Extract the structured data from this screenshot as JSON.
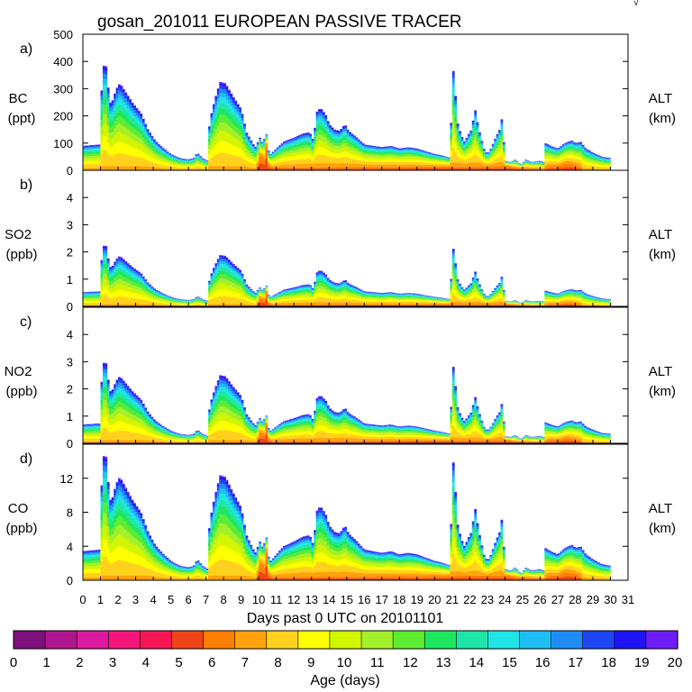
{
  "corner_mark": "√",
  "chart_data": {
    "type": "area",
    "title": "gosan_201011 EUROPEAN PASSIVE TRACER",
    "xlabel": "Days past 0 UTC on 20101101",
    "xlim": [
      0,
      31
    ],
    "x_ticks": [
      "0",
      "1",
      "2",
      "3",
      "4",
      "5",
      "6",
      "7",
      "8",
      "9",
      "10",
      "11",
      "12",
      "13",
      "14",
      "15",
      "16",
      "17",
      "18",
      "19",
      "20",
      "21",
      "22",
      "23",
      "24",
      "25",
      "26",
      "27",
      "28",
      "29",
      "30",
      "31"
    ],
    "time_points_per_day": 8,
    "total_profile_knots": [
      [
        0.0,
        0.18
      ],
      [
        0.95,
        0.19
      ],
      [
        1.0,
        0.3
      ],
      [
        1.1,
        0.76
      ],
      [
        1.3,
        0.78
      ],
      [
        1.5,
        0.53
      ],
      [
        1.6,
        0.48
      ],
      [
        1.9,
        0.6
      ],
      [
        2.1,
        0.64
      ],
      [
        2.4,
        0.58
      ],
      [
        2.8,
        0.5
      ],
      [
        3.3,
        0.42
      ],
      [
        3.7,
        0.3
      ],
      [
        4.1,
        0.22
      ],
      [
        4.5,
        0.17
      ],
      [
        5.0,
        0.12
      ],
      [
        5.5,
        0.09
      ],
      [
        6.0,
        0.08
      ],
      [
        6.3,
        0.09
      ],
      [
        6.5,
        0.13
      ],
      [
        6.8,
        0.09
      ],
      [
        7.1,
        0.07
      ],
      [
        7.2,
        0.36
      ],
      [
        7.5,
        0.52
      ],
      [
        7.8,
        0.65
      ],
      [
        8.1,
        0.64
      ],
      [
        8.5,
        0.55
      ],
      [
        9.0,
        0.45
      ],
      [
        9.3,
        0.28
      ],
      [
        9.6,
        0.21
      ],
      [
        9.8,
        0.17
      ],
      [
        10.1,
        0.25
      ],
      [
        10.25,
        0.18
      ],
      [
        10.4,
        0.3
      ],
      [
        10.6,
        0.11
      ],
      [
        11.0,
        0.16
      ],
      [
        11.4,
        0.21
      ],
      [
        12.0,
        0.24
      ],
      [
        12.5,
        0.27
      ],
      [
        12.9,
        0.28
      ],
      [
        13.1,
        0.22
      ],
      [
        13.3,
        0.43
      ],
      [
        13.5,
        0.46
      ],
      [
        13.8,
        0.41
      ],
      [
        14.0,
        0.34
      ],
      [
        14.3,
        0.3
      ],
      [
        14.6,
        0.29
      ],
      [
        14.9,
        0.34
      ],
      [
        15.1,
        0.29
      ],
      [
        15.5,
        0.25
      ],
      [
        16.0,
        0.19
      ],
      [
        16.5,
        0.18
      ],
      [
        17.0,
        0.17
      ],
      [
        17.5,
        0.18
      ],
      [
        18.0,
        0.16
      ],
      [
        18.5,
        0.17
      ],
      [
        19.0,
        0.16
      ],
      [
        19.5,
        0.14
      ],
      [
        20.0,
        0.12
      ],
      [
        20.4,
        0.11
      ],
      [
        20.9,
        0.09
      ],
      [
        21.0,
        0.78
      ],
      [
        21.1,
        0.7
      ],
      [
        21.3,
        0.35
      ],
      [
        21.5,
        0.26
      ],
      [
        21.7,
        0.21
      ],
      [
        21.9,
        0.26
      ],
      [
        22.1,
        0.3
      ],
      [
        22.3,
        0.45
      ],
      [
        22.5,
        0.31
      ],
      [
        22.8,
        0.16
      ],
      [
        23.0,
        0.12
      ],
      [
        23.2,
        0.16
      ],
      [
        23.5,
        0.25
      ],
      [
        23.7,
        0.3
      ],
      [
        23.85,
        0.4
      ],
      [
        24.0,
        0.07
      ],
      [
        24.3,
        0.06
      ],
      [
        24.6,
        0.08
      ],
      [
        24.9,
        0.04
      ],
      [
        25.2,
        0.08
      ],
      [
        25.5,
        0.06
      ],
      [
        26.0,
        0.07
      ],
      [
        26.2,
        0.06
      ],
      [
        26.3,
        0.2
      ],
      [
        26.6,
        0.18
      ],
      [
        27.0,
        0.16
      ],
      [
        27.4,
        0.2
      ],
      [
        27.8,
        0.22
      ],
      [
        28.0,
        0.2
      ],
      [
        28.3,
        0.21
      ],
      [
        28.6,
        0.16
      ],
      [
        29.0,
        0.13
      ],
      [
        29.5,
        0.1
      ],
      [
        30.0,
        0.09
      ]
    ],
    "young_profile_knots": [
      [
        9.9,
        0.02
      ],
      [
        10.1,
        0.12
      ],
      [
        10.3,
        0.07
      ],
      [
        10.45,
        0.18
      ],
      [
        10.55,
        0.04
      ],
      [
        10.8,
        0.02
      ],
      [
        24.2,
        0.03
      ],
      [
        24.5,
        0.02
      ],
      [
        26.2,
        0.01
      ],
      [
        26.5,
        0.03
      ],
      [
        27.0,
        0.03
      ],
      [
        27.5,
        0.05
      ],
      [
        28.0,
        0.04
      ],
      [
        28.4,
        0.02
      ]
    ],
    "age_colorscale": {
      "label": "Age (days)",
      "ticks": [
        "0",
        "1",
        "2",
        "3",
        "4",
        "5",
        "6",
        "7",
        "8",
        "9",
        "10",
        "11",
        "12",
        "13",
        "14",
        "15",
        "16",
        "17",
        "18",
        "19",
        "20"
      ],
      "colors": [
        "#7e0f7e",
        "#b0168f",
        "#db1aa0",
        "#f5167c",
        "#f51654",
        "#f04318",
        "#ff7f00",
        "#ffa20b",
        "#ffd11c",
        "#ffff00",
        "#d2f500",
        "#a3f02a",
        "#5eec32",
        "#1ee65f",
        "#1ee6a8",
        "#1ee6e6",
        "#1ebef5",
        "#1e8ef5",
        "#1e46f5",
        "#1e14f5",
        "#6e1ef5"
      ]
    },
    "panels": [
      {
        "id": "a)",
        "species": "BC",
        "unit": "(ppt)",
        "ylim": [
          0,
          500
        ],
        "ytick_labels": [
          "0",
          "100",
          "200",
          "300",
          "400",
          "500"
        ],
        "ytick_values": [
          0,
          100,
          200,
          300,
          400,
          500
        ],
        "scale_max": 500,
        "right_label": "ALT",
        "right_unit": "(km)"
      },
      {
        "id": "b)",
        "species": "SO2",
        "unit": "(ppb)",
        "ylim": [
          0,
          5
        ],
        "ytick_labels": [
          "0",
          "1",
          "2",
          "3",
          "4"
        ],
        "ytick_values": [
          0,
          1,
          2,
          3,
          4
        ],
        "scale_max": 2.9,
        "right_label": "ALT",
        "right_unit": "(km)"
      },
      {
        "id": "c)",
        "species": "NO2",
        "unit": "(ppb)",
        "ylim": [
          0,
          5
        ],
        "ytick_labels": [
          "0",
          "1",
          "2",
          "3",
          "4"
        ],
        "ytick_values": [
          0,
          1,
          2,
          3,
          4
        ],
        "scale_max": 3.85,
        "right_label": "ALT",
        "right_unit": "(km)"
      },
      {
        "id": "d)",
        "species": "CO",
        "unit": "(ppb)",
        "ylim": [
          0,
          16
        ],
        "ytick_labels": [
          "0",
          "4",
          "8",
          "12"
        ],
        "ytick_values": [
          0,
          4,
          8,
          12
        ],
        "scale_max": 19,
        "right_label": "ALT",
        "right_unit": "(km)"
      }
    ]
  }
}
